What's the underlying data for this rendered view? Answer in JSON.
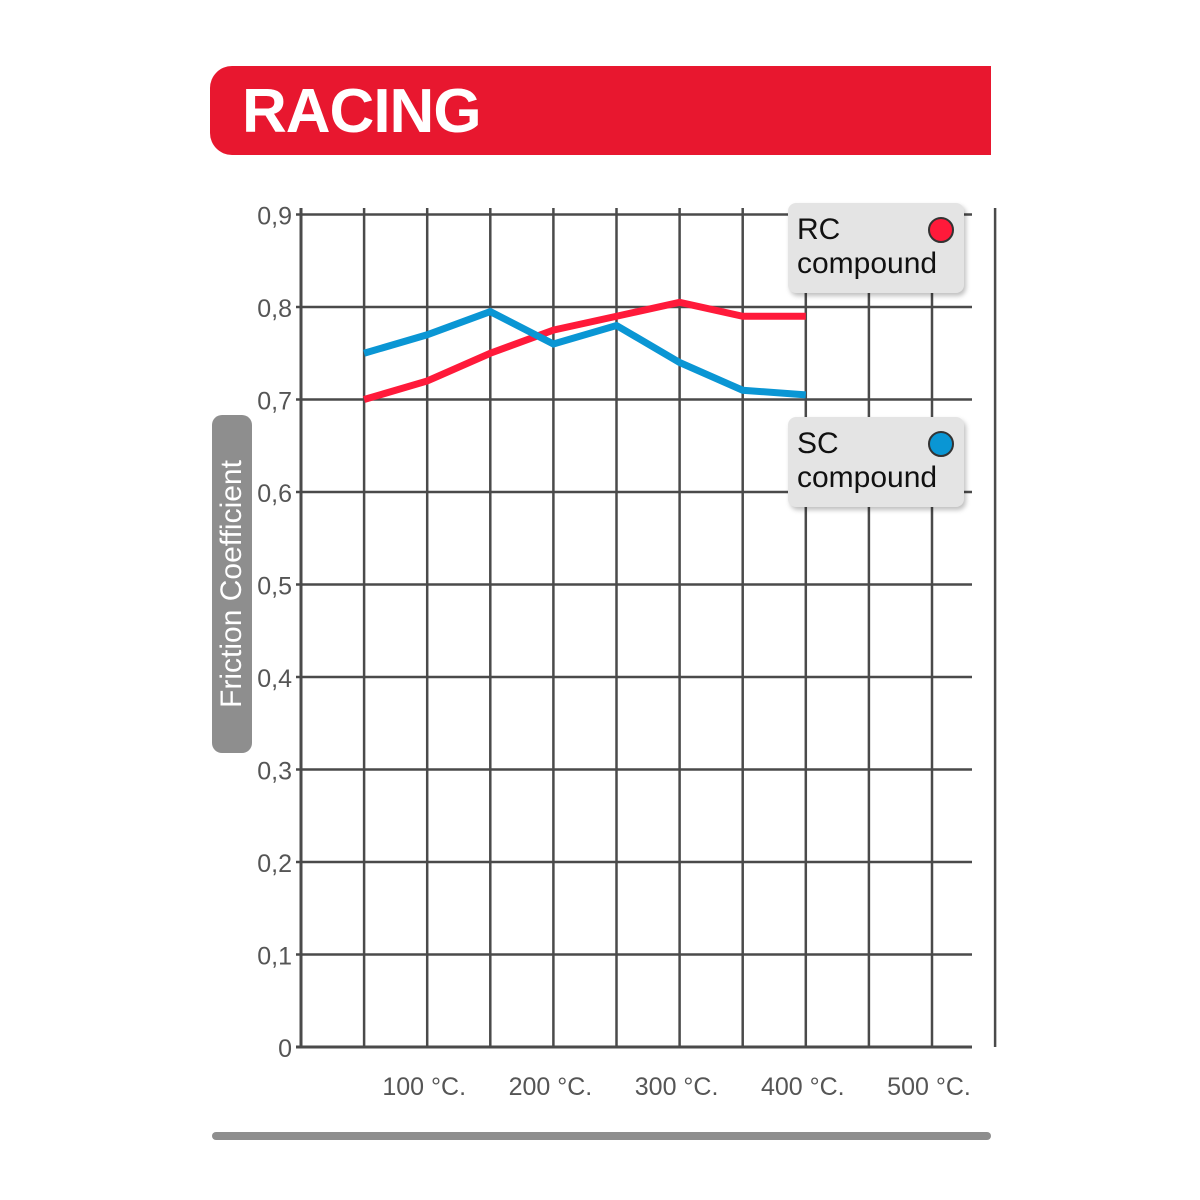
{
  "header": {
    "title": "RACING",
    "color": "#e8172f"
  },
  "chart_data": {
    "type": "line",
    "title": "RACING",
    "ylabel": "Friction Coefficient",
    "xlabel": "",
    "ylim": [
      0,
      0.9
    ],
    "xlim": [
      0,
      550
    ],
    "yticks": [
      {
        "v": 0,
        "label": "0"
      },
      {
        "v": 0.1,
        "label": "0,1"
      },
      {
        "v": 0.2,
        "label": "0,2"
      },
      {
        "v": 0.3,
        "label": "0,3"
      },
      {
        "v": 0.4,
        "label": "0,4"
      },
      {
        "v": 0.5,
        "label": "0,5"
      },
      {
        "v": 0.6,
        "label": "0,6"
      },
      {
        "v": 0.7,
        "label": "0,7"
      },
      {
        "v": 0.8,
        "label": "0,8"
      },
      {
        "v": 0.9,
        "label": "0,9"
      }
    ],
    "xticks": [
      {
        "v": 100,
        "label": "100 °C."
      },
      {
        "v": 200,
        "label": "200 °C."
      },
      {
        "v": 300,
        "label": "300 °C."
      },
      {
        "v": 400,
        "label": "400 °C."
      },
      {
        "v": 500,
        "label": "500 °C."
      }
    ],
    "grid": true,
    "x": [
      50,
      100,
      150,
      200,
      250,
      300,
      350,
      400
    ],
    "series": [
      {
        "name": "RC compound",
        "color": "#ff1a3a",
        "values": [
          0.7,
          0.72,
          0.75,
          0.775,
          0.79,
          0.805,
          0.79,
          0.79
        ]
      },
      {
        "name": "SC compound",
        "color": "#0a96d4",
        "values": [
          0.75,
          0.77,
          0.795,
          0.76,
          0.78,
          0.74,
          0.71,
          0.705
        ]
      }
    ],
    "legend_placement": "right"
  },
  "legend": [
    {
      "line1": "RC",
      "line2": "compound",
      "color": "#ff1a3a"
    },
    {
      "line1": "SC",
      "line2": "compound",
      "color": "#0a96d4"
    }
  ]
}
